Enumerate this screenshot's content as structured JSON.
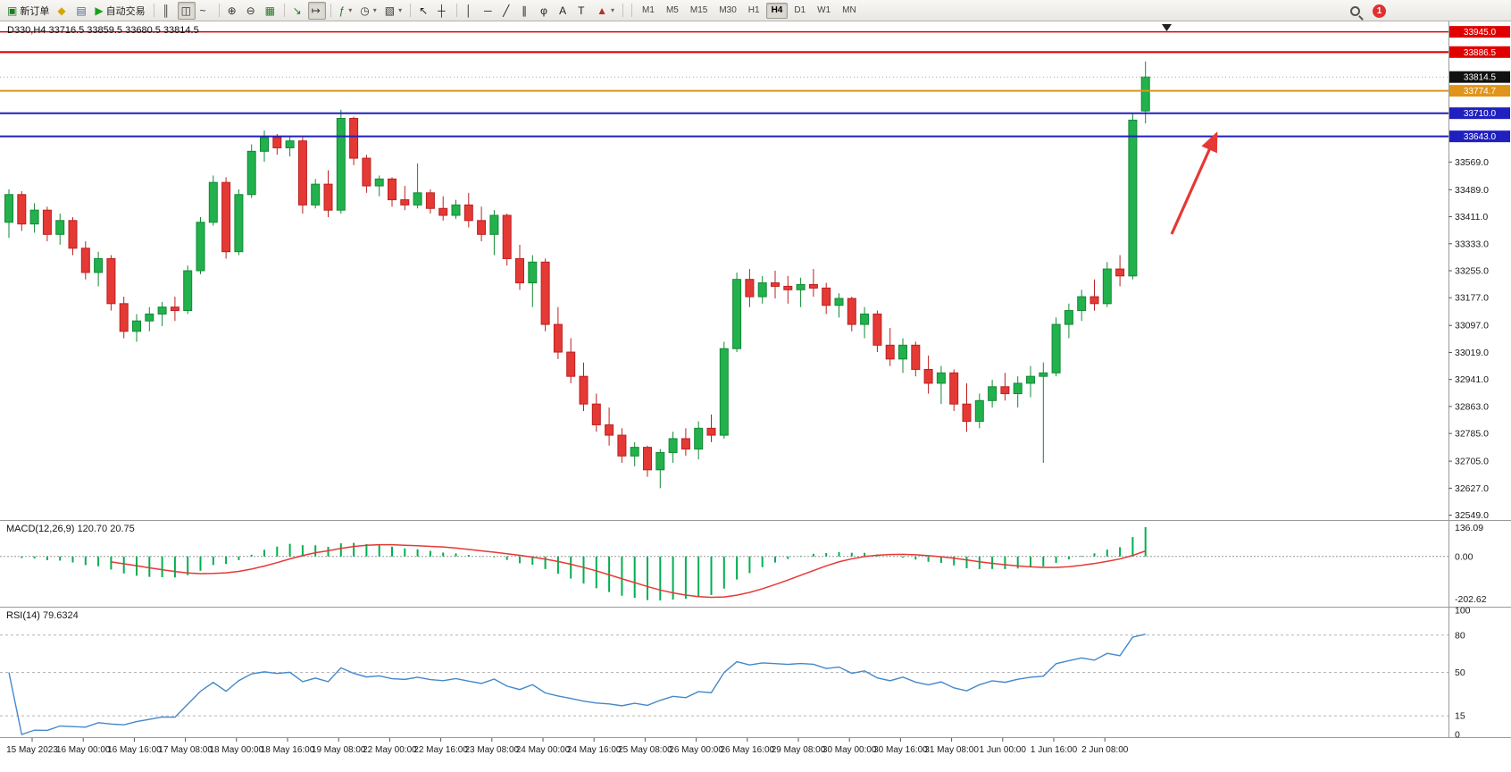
{
  "toolbar": {
    "buttons": [
      {
        "name": "new-order-button",
        "glyph": "▣",
        "color": "#1f7a1f",
        "label": "新订单"
      },
      {
        "name": "metaeditor-button",
        "glyph": "◆",
        "color": "#d9a400"
      },
      {
        "name": "print-button",
        "glyph": "▤",
        "color": "#46648f"
      },
      {
        "name": "autotrading-button",
        "glyph": "▶",
        "color": "#18a018",
        "label": "自动交易"
      },
      {
        "sep": true
      },
      {
        "name": "bar-chart-button",
        "glyph": "║",
        "color": "#333"
      },
      {
        "name": "candlestick-chart-button",
        "glyph": "◫",
        "color": "#333",
        "active": true
      },
      {
        "name": "line-chart-button",
        "glyph": "~",
        "color": "#333"
      },
      {
        "sep": true
      },
      {
        "name": "zoom-in-button",
        "glyph": "⊕",
        "color": "#333"
      },
      {
        "name": "zoom-out-button",
        "glyph": "⊖",
        "color": "#333"
      },
      {
        "name": "tile-windows-button",
        "glyph": "▦",
        "color": "#1f7a1f"
      },
      {
        "sep": true
      },
      {
        "name": "auto-scroll-button",
        "glyph": "↘",
        "color": "#1f7a1f"
      },
      {
        "name": "chart-shift-button",
        "glyph": "↦",
        "color": "#333",
        "active": true
      },
      {
        "sep": true
      },
      {
        "name": "indicators-button",
        "glyph": "ƒ",
        "color": "#1f7a1f",
        "dropdown": true
      },
      {
        "name": "periods-button",
        "glyph": "◷",
        "color": "#333",
        "dropdown": true
      },
      {
        "name": "templates-button",
        "glyph": "▧",
        "color": "#333",
        "dropdown": true
      },
      {
        "sep": true
      },
      {
        "name": "cursor-button",
        "glyph": "↖",
        "color": "#222"
      },
      {
        "name": "crosshair-button",
        "glyph": "┼",
        "color": "#222"
      },
      {
        "sep": true
      },
      {
        "name": "vertical-line-button",
        "glyph": "│",
        "color": "#222"
      },
      {
        "name": "horizontal-line-button",
        "glyph": "─",
        "color": "#222"
      },
      {
        "name": "trendline-button",
        "glyph": "╱",
        "color": "#222"
      },
      {
        "name": "equidistant-channel-button",
        "glyph": "∥",
        "color": "#222"
      },
      {
        "name": "fibonacci-button",
        "glyph": "φ",
        "color": "#222"
      },
      {
        "name": "text-button",
        "glyph": "A",
        "color": "#222"
      },
      {
        "name": "text-label-button",
        "glyph": "T",
        "color": "#222"
      },
      {
        "name": "shapes-button",
        "glyph": "▲",
        "color": "#b03030",
        "dropdown": true
      },
      {
        "sep": true
      }
    ],
    "timeframes": [
      "M1",
      "M5",
      "M15",
      "M30",
      "H1",
      "H4",
      "D1",
      "W1",
      "MN"
    ],
    "active_timeframe": "H4",
    "alert_count": "1"
  },
  "header": {
    "symbol_info": "D330,H4 33716.5 33859.5 33680.5 33814.5"
  },
  "indicators": {
    "macd": {
      "name": "MACD(12,26,9)",
      "value_main": "120.70",
      "value_signal": "20.75",
      "axis_max": "136.09",
      "axis_zero": "0.00",
      "axis_min": "-202.62",
      "fast": 12,
      "slow": 26,
      "signal": 9
    },
    "rsi": {
      "name": "RSI(14)",
      "value": "79.6324",
      "period": 14,
      "axis_labels": [
        "100",
        "80",
        "50",
        "15",
        "0"
      ],
      "levels": [
        80,
        50,
        15
      ]
    }
  },
  "chart_data": {
    "type": "candlestick",
    "symbol": "D330",
    "timeframe": "H4",
    "y_range": [
      32535,
      33975
    ],
    "y_axis_ticks": [
      "33569.0",
      "33489.0",
      "33411.0",
      "33333.0",
      "33255.0",
      "33177.0",
      "33097.0",
      "33019.0",
      "32941.0",
      "32863.0",
      "32785.0",
      "32705.0",
      "32627.0",
      "32549.0"
    ],
    "x_labels": [
      "15 May 2023",
      "16 May 00:00",
      "16 May 16:00",
      "17 May 08:00",
      "18 May 00:00",
      "18 May 16:00",
      "19 May 08:00",
      "22 May 00:00",
      "22 May 16:00",
      "23 May 08:00",
      "24 May 00:00",
      "24 May 16:00",
      "25 May 08:00",
      "26 May 00:00",
      "26 May 16:00",
      "29 May 08:00",
      "30 May 00:00",
      "30 May 16:00",
      "31 May 08:00",
      "1 Jun 00:00",
      "1 Jun 16:00",
      "2 Jun 08:00"
    ],
    "horizontal_lines": [
      {
        "price": 33945.0,
        "label": "33945.0",
        "color": "#e00000",
        "width": 1.4
      },
      {
        "price": 33886.5,
        "label": "33886.5",
        "color": "#e00000",
        "width": 2.2
      },
      {
        "price": 33774.7,
        "label": "33774.7",
        "color": "#e0941a",
        "width": 2
      },
      {
        "price": 33710.0,
        "label": "33710.0",
        "color": "#2020c0",
        "width": 2
      },
      {
        "price": 33643.0,
        "label": "33643.0",
        "color": "#2020c0",
        "width": 2
      }
    ],
    "current_price": 33814.5,
    "current_price_label": "33814.5",
    "annotation_arrow": {
      "from": [
        1312,
        262
      ],
      "to": [
        1362,
        150
      ],
      "color": "#e53935"
    },
    "colors": {
      "up": "#22b14c",
      "up_stroke": "#128a35",
      "down": "#e53935",
      "down_stroke": "#bb2020",
      "macd_hist": "#00b050",
      "macd_signal": "#e53935",
      "rsi": "#4488cc"
    },
    "ohlc": [
      [
        33395,
        33490,
        33350,
        33475
      ],
      [
        33475,
        33485,
        33370,
        33390
      ],
      [
        33390,
        33450,
        33365,
        33430
      ],
      [
        33430,
        33440,
        33340,
        33360
      ],
      [
        33360,
        33420,
        33330,
        33400
      ],
      [
        33400,
        33410,
        33300,
        33320
      ],
      [
        33320,
        33340,
        33230,
        33250
      ],
      [
        33250,
        33310,
        33210,
        33290
      ],
      [
        33290,
        33300,
        33140,
        33160
      ],
      [
        33160,
        33180,
        33060,
        33080
      ],
      [
        33080,
        33130,
        33050,
        33110
      ],
      [
        33110,
        33150,
        33080,
        33130
      ],
      [
        33130,
        33165,
        33095,
        33150
      ],
      [
        33150,
        33180,
        33110,
        33140
      ],
      [
        33140,
        33270,
        33130,
        33255
      ],
      [
        33255,
        33410,
        33245,
        33395
      ],
      [
        33395,
        33530,
        33385,
        33510
      ],
      [
        33510,
        33525,
        33290,
        33310
      ],
      [
        33310,
        33490,
        33300,
        33475
      ],
      [
        33475,
        33620,
        33465,
        33600
      ],
      [
        33600,
        33660,
        33570,
        33640
      ],
      [
        33640,
        33650,
        33590,
        33610
      ],
      [
        33610,
        33645,
        33585,
        33630
      ],
      [
        33630,
        33640,
        33420,
        33445
      ],
      [
        33445,
        33520,
        33435,
        33505
      ],
      [
        33505,
        33545,
        33410,
        33430
      ],
      [
        33430,
        33720,
        33420,
        33695
      ],
      [
        33695,
        33700,
        33560,
        33580
      ],
      [
        33580,
        33590,
        33480,
        33500
      ],
      [
        33500,
        33530,
        33470,
        33520
      ],
      [
        33520,
        33525,
        33440,
        33460
      ],
      [
        33460,
        33500,
        33430,
        33445
      ],
      [
        33445,
        33565,
        33435,
        33480
      ],
      [
        33480,
        33490,
        33420,
        33435
      ],
      [
        33435,
        33470,
        33400,
        33415
      ],
      [
        33415,
        33460,
        33405,
        33445
      ],
      [
        33445,
        33480,
        33380,
        33400
      ],
      [
        33400,
        33440,
        33340,
        33360
      ],
      [
        33360,
        33430,
        33300,
        33415
      ],
      [
        33415,
        33420,
        33270,
        33290
      ],
      [
        33290,
        33330,
        33200,
        33220
      ],
      [
        33220,
        33300,
        33150,
        33280
      ],
      [
        33280,
        33290,
        33080,
        33100
      ],
      [
        33100,
        33150,
        33000,
        33020
      ],
      [
        33020,
        33060,
        32930,
        32950
      ],
      [
        32950,
        32990,
        32850,
        32870
      ],
      [
        32870,
        32900,
        32790,
        32810
      ],
      [
        32810,
        32860,
        32750,
        32780
      ],
      [
        32780,
        32800,
        32700,
        32720
      ],
      [
        32720,
        32760,
        32690,
        32745
      ],
      [
        32745,
        32750,
        32660,
        32680
      ],
      [
        32680,
        32740,
        32627,
        32730
      ],
      [
        32730,
        32790,
        32700,
        32770
      ],
      [
        32770,
        32800,
        32720,
        32740
      ],
      [
        32740,
        32820,
        32710,
        32800
      ],
      [
        32800,
        32840,
        32760,
        32780
      ],
      [
        32780,
        33050,
        32770,
        33030
      ],
      [
        33030,
        33250,
        33020,
        33230
      ],
      [
        33230,
        33260,
        33150,
        33180
      ],
      [
        33180,
        33240,
        33160,
        33220
      ],
      [
        33220,
        33255,
        33175,
        33210
      ],
      [
        33210,
        33240,
        33160,
        33200
      ],
      [
        33200,
        33235,
        33150,
        33215
      ],
      [
        33215,
        33260,
        33180,
        33205
      ],
      [
        33205,
        33220,
        33130,
        33155
      ],
      [
        33155,
        33190,
        33120,
        33175
      ],
      [
        33175,
        33180,
        33080,
        33100
      ],
      [
        33100,
        33150,
        33060,
        33130
      ],
      [
        33130,
        33140,
        33020,
        33040
      ],
      [
        33040,
        33090,
        32980,
        33000
      ],
      [
        33000,
        33060,
        32960,
        33040
      ],
      [
        33040,
        33050,
        32950,
        32970
      ],
      [
        32970,
        33010,
        32900,
        32930
      ],
      [
        32930,
        32980,
        32870,
        32960
      ],
      [
        32960,
        32970,
        32850,
        32870
      ],
      [
        32870,
        32930,
        32790,
        32820
      ],
      [
        32820,
        32900,
        32800,
        32880
      ],
      [
        32880,
        32940,
        32860,
        32920
      ],
      [
        32920,
        32960,
        32880,
        32900
      ],
      [
        32900,
        32950,
        32860,
        32930
      ],
      [
        32930,
        32980,
        32890,
        32950
      ],
      [
        32950,
        32990,
        32700,
        32960
      ],
      [
        32960,
        33120,
        32950,
        33100
      ],
      [
        33100,
        33160,
        33060,
        33140
      ],
      [
        33140,
        33200,
        33110,
        33180
      ],
      [
        33180,
        33230,
        33140,
        33160
      ],
      [
        33160,
        33280,
        33150,
        33260
      ],
      [
        33260,
        33300,
        33210,
        33240
      ],
      [
        33240,
        33710,
        33230,
        33690
      ],
      [
        33716.5,
        33859.5,
        33680.5,
        33814.5
      ]
    ]
  }
}
